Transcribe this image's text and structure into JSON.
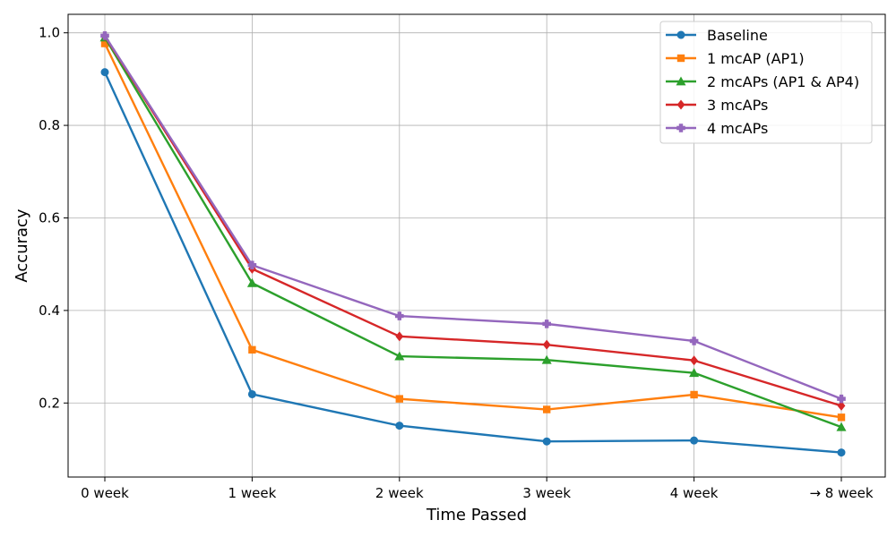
{
  "chart_data": {
    "type": "line",
    "title": "",
    "xlabel": "Time Passed",
    "ylabel": "Accuracy",
    "categories": [
      "0 week",
      "1 week",
      "2 week",
      "3 week",
      "4 week",
      "→ 8 week"
    ],
    "ylim": [
      0.04,
      1.04
    ],
    "yticks": [
      0.2,
      0.4,
      0.6,
      0.8,
      1.0
    ],
    "ytick_labels": [
      "0.2",
      "0.4",
      "0.6",
      "0.8",
      "1.0"
    ],
    "grid": true,
    "legend_position": "top-right",
    "series": [
      {
        "name": "Baseline",
        "color": "#1f77b4",
        "marker": "circle",
        "values": [
          0.915,
          0.219,
          0.151,
          0.117,
          0.119,
          0.093
        ]
      },
      {
        "name": "1 mcAP (AP1)",
        "color": "#ff7f0e",
        "marker": "square",
        "values": [
          0.977,
          0.315,
          0.209,
          0.186,
          0.218,
          0.169
        ]
      },
      {
        "name": "2 mcAPs (AP1 & AP4)",
        "color": "#2ca02c",
        "marker": "triangle",
        "values": [
          0.99,
          0.459,
          0.301,
          0.293,
          0.265,
          0.148
        ]
      },
      {
        "name": "3 mcAPs",
        "color": "#d62728",
        "marker": "diamond",
        "values": [
          0.993,
          0.49,
          0.344,
          0.326,
          0.292,
          0.194
        ]
      },
      {
        "name": "4 mcAPs",
        "color": "#9467bd",
        "marker": "plus",
        "values": [
          0.994,
          0.498,
          0.388,
          0.371,
          0.334,
          0.209
        ]
      }
    ]
  }
}
